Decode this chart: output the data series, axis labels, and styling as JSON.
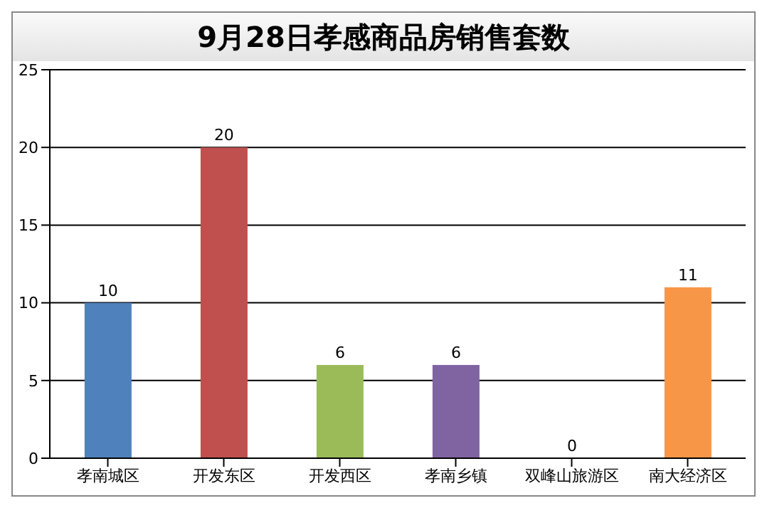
{
  "chart_data": {
    "type": "bar",
    "title": "9月28日孝感商品房销售套数",
    "categories": [
      "孝南城区",
      "开发东区",
      "开发西区",
      "孝南乡镇",
      "双峰山旅游区",
      "南大经济区"
    ],
    "values": [
      10,
      20,
      6,
      6,
      0,
      11
    ],
    "colors": [
      "#4f81bd",
      "#c0504d",
      "#9bbb59",
      "#8064a2",
      "#4bacc6",
      "#f79646"
    ],
    "ylim": [
      0,
      25
    ],
    "yticks": [
      0,
      5,
      10,
      15,
      20,
      25
    ],
    "grid": "y",
    "data_labels": true
  }
}
